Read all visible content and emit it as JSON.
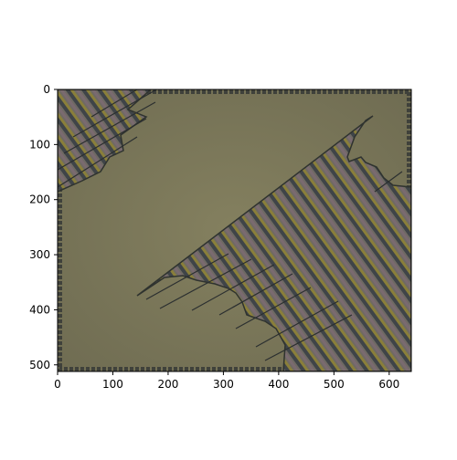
{
  "figure": {
    "x_axis": {
      "range": [
        0,
        640
      ],
      "ticks": [
        {
          "value": 0,
          "label": "0"
        },
        {
          "value": 100,
          "label": "100"
        },
        {
          "value": 200,
          "label": "200"
        },
        {
          "value": 300,
          "label": "300"
        },
        {
          "value": 400,
          "label": "400"
        },
        {
          "value": 500,
          "label": "500"
        },
        {
          "value": 600,
          "label": "600"
        }
      ]
    },
    "y_axis": {
      "range": [
        0,
        512
      ],
      "inverted": true,
      "ticks": [
        {
          "value": 0,
          "label": "0"
        },
        {
          "value": 100,
          "label": "100"
        },
        {
          "value": 200,
          "label": "200"
        },
        {
          "value": 300,
          "label": "300"
        },
        {
          "value": 400,
          "label": "400"
        },
        {
          "value": 500,
          "label": "500"
        }
      ]
    },
    "image": {
      "description_icon": "striped-tile-texture-image",
      "colors": {
        "background": "#7e7a5d",
        "border": "#3f413b",
        "stripe_dark": "#4a4e52",
        "stripe_olive": "#8a7f3a",
        "stripe_mauve": "#7a6a70"
      }
    }
  }
}
